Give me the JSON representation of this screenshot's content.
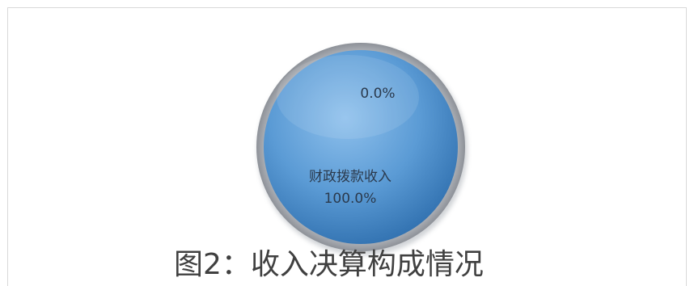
{
  "caption": "图2：收入决算构成情况",
  "chart_data": {
    "type": "pie",
    "title": "",
    "categories": [
      "",
      "财政拨款收入"
    ],
    "values": [
      0,
      100
    ],
    "data_labels": [
      "0.0%",
      "100.0%"
    ],
    "legend": "none",
    "colors": {
      "slice_main": "#5b9bd5",
      "slice_highlight": "#8ec0ec",
      "slice_shadow": "#2f6fae",
      "rim": "#9a9fa6",
      "label_text": "#2b3a4d"
    }
  }
}
